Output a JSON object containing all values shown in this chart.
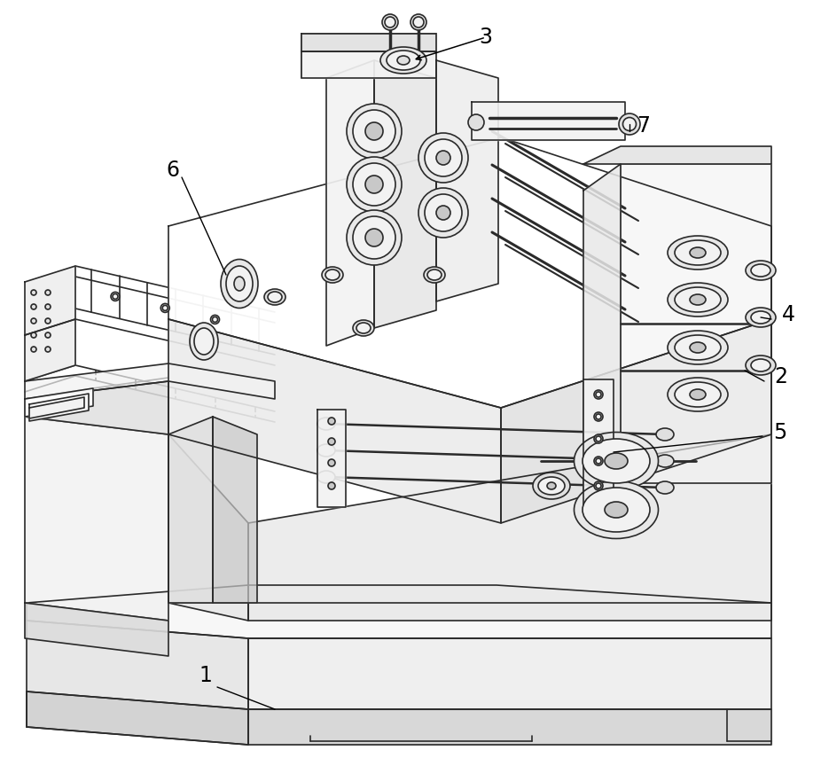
{
  "background_color": "#ffffff",
  "line_color": "#2a2a2a",
  "line_width": 1.2,
  "figsize": [
    9.26,
    8.55
  ],
  "dpi": 100,
  "label_fontsize": 17
}
